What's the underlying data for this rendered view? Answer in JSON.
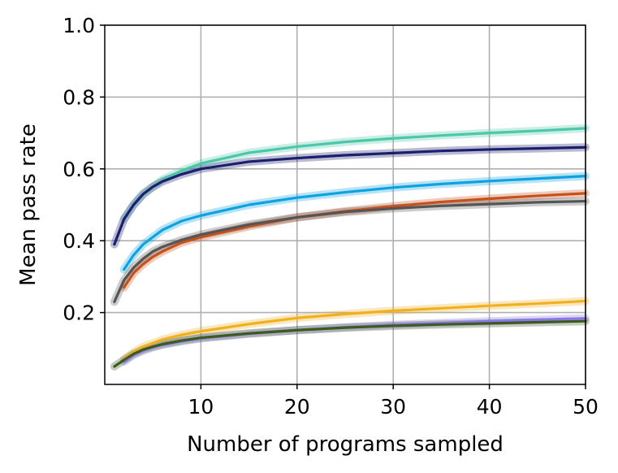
{
  "chart_data": {
    "type": "line",
    "title": "",
    "xlabel": "Number of programs sampled",
    "ylabel": "Mean pass rate",
    "xlim": [
      0,
      50
    ],
    "ylim": [
      0,
      1.0
    ],
    "xticks": [
      10,
      20,
      30,
      40,
      50
    ],
    "yticks": [
      0.2,
      0.4,
      0.6,
      0.8,
      1.0
    ],
    "xtick_labels": [
      "10",
      "20",
      "30",
      "40",
      "50"
    ],
    "ytick_labels": [
      "0.2",
      "0.4",
      "0.6",
      "0.8",
      "1.0"
    ],
    "grid": true,
    "legend": "none",
    "series": [
      {
        "name": "teal",
        "color": "#4cc7a8",
        "x": [
          2,
          3,
          4,
          5,
          6,
          8,
          10,
          15,
          20,
          25,
          30,
          35,
          40,
          45,
          50
        ],
        "values": [
          0.46,
          0.5,
          0.53,
          0.55,
          0.57,
          0.595,
          0.615,
          0.645,
          0.662,
          0.675,
          0.685,
          0.693,
          0.7,
          0.706,
          0.713
        ]
      },
      {
        "name": "navy",
        "color": "#1a1f6e",
        "x": [
          1,
          2,
          3,
          4,
          5,
          6,
          8,
          10,
          15,
          20,
          25,
          30,
          35,
          40,
          45,
          50
        ],
        "values": [
          0.39,
          0.46,
          0.5,
          0.53,
          0.55,
          0.565,
          0.585,
          0.6,
          0.62,
          0.63,
          0.638,
          0.644,
          0.65,
          0.654,
          0.657,
          0.66
        ]
      },
      {
        "name": "light blue",
        "color": "#0ea3e0",
        "x": [
          2,
          3,
          4,
          5,
          6,
          8,
          10,
          15,
          20,
          25,
          30,
          35,
          40,
          45,
          50
        ],
        "values": [
          0.32,
          0.36,
          0.39,
          0.41,
          0.43,
          0.455,
          0.47,
          0.5,
          0.52,
          0.535,
          0.548,
          0.558,
          0.566,
          0.573,
          0.58
        ]
      },
      {
        "name": "orange",
        "color": "#c8501a",
        "x": [
          2,
          3,
          4,
          5,
          6,
          8,
          10,
          15,
          20,
          25,
          30,
          35,
          40,
          45,
          50
        ],
        "values": [
          0.27,
          0.31,
          0.335,
          0.355,
          0.37,
          0.395,
          0.41,
          0.44,
          0.465,
          0.482,
          0.496,
          0.508,
          0.517,
          0.525,
          0.532
        ]
      },
      {
        "name": "gray",
        "color": "#555555",
        "x": [
          1,
          2,
          3,
          4,
          5,
          6,
          8,
          10,
          15,
          20,
          25,
          30,
          35,
          40,
          45,
          50
        ],
        "values": [
          0.23,
          0.29,
          0.325,
          0.35,
          0.37,
          0.383,
          0.402,
          0.417,
          0.445,
          0.465,
          0.48,
          0.49,
          0.497,
          0.502,
          0.507,
          0.51
        ]
      },
      {
        "name": "yellow",
        "color": "#f0b020",
        "x": [
          2,
          3,
          4,
          5,
          6,
          8,
          10,
          15,
          20,
          25,
          30,
          35,
          40,
          45,
          50
        ],
        "values": [
          0.07,
          0.09,
          0.105,
          0.115,
          0.125,
          0.138,
          0.148,
          0.168,
          0.185,
          0.196,
          0.205,
          0.212,
          0.219,
          0.225,
          0.232
        ]
      },
      {
        "name": "purple",
        "color": "#8a78e8",
        "x": [
          2,
          3,
          4,
          5,
          6,
          8,
          10,
          15,
          20,
          25,
          30,
          35,
          40,
          45,
          50
        ],
        "values": [
          0.063,
          0.082,
          0.094,
          0.103,
          0.11,
          0.12,
          0.128,
          0.141,
          0.151,
          0.159,
          0.166,
          0.171,
          0.176,
          0.18,
          0.184
        ]
      },
      {
        "name": "dark green",
        "color": "#3d5a20",
        "x": [
          1,
          2,
          3,
          4,
          5,
          6,
          8,
          10,
          15,
          20,
          25,
          30,
          35,
          40,
          45,
          50
        ],
        "values": [
          0.05,
          0.068,
          0.085,
          0.097,
          0.105,
          0.112,
          0.122,
          0.13,
          0.142,
          0.151,
          0.158,
          0.163,
          0.167,
          0.17,
          0.173,
          0.176
        ]
      }
    ]
  }
}
